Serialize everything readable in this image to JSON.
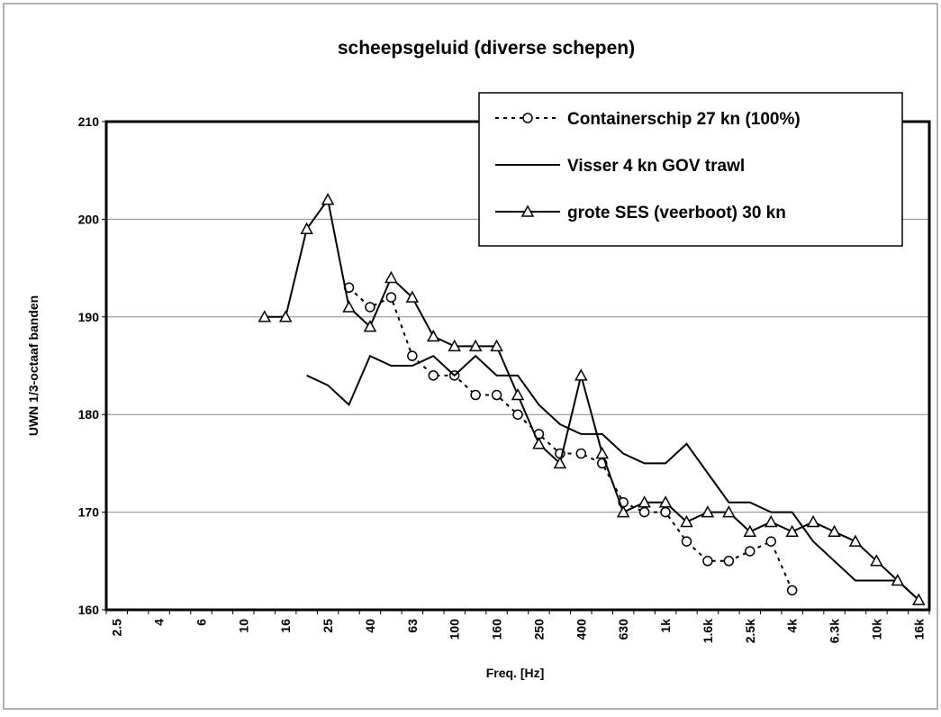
{
  "chart_data": {
    "type": "line",
    "title": "scheepsgeluid (diverse schepen)",
    "y_label": "UWN 1/3-octaaf banden",
    "x_label": "Freq. [Hz]",
    "categories": [
      "2.5",
      null,
      "4",
      null,
      "6",
      null,
      "10",
      null,
      "16",
      null,
      "25",
      null,
      "40",
      null,
      "63",
      null,
      "100",
      null,
      "160",
      null,
      "250",
      null,
      "400",
      null,
      "630",
      null,
      "1k",
      null,
      "1.6k",
      null,
      "2.5k",
      null,
      "4k",
      null,
      "6.3k",
      null,
      "10k",
      null,
      "16k"
    ],
    "ylim": [
      160,
      210
    ],
    "yticks": [
      160,
      170,
      180,
      190,
      200,
      210
    ],
    "grid": true,
    "legend": "top-right",
    "series": [
      {
        "name": "Containerschip 27 kn (100%)",
        "color": "#000000",
        "marker": "circle",
        "dash": "dotted",
        "values": [
          null,
          null,
          null,
          null,
          null,
          null,
          null,
          null,
          null,
          null,
          null,
          193,
          191,
          192,
          186,
          184,
          184,
          182,
          182,
          180,
          178,
          176,
          176,
          175,
          171,
          170,
          170,
          167,
          165,
          165,
          166,
          167,
          162,
          null,
          null,
          null,
          null,
          null,
          null
        ]
      },
      {
        "name": "Visser 4 kn GOV trawl",
        "color": "#000000",
        "values": [
          null,
          null,
          null,
          null,
          null,
          null,
          null,
          null,
          null,
          184,
          183,
          181,
          186,
          185,
          185,
          186,
          184,
          186,
          184,
          184,
          181,
          179,
          178,
          178,
          176,
          175,
          175,
          177,
          174,
          171,
          171,
          170,
          170,
          167,
          165,
          163,
          163,
          163,
          161
        ]
      },
      {
        "name": "grote SES (veerboot) 30 kn",
        "color": "#000000",
        "marker": "triangle",
        "values": [
          null,
          null,
          null,
          null,
          null,
          null,
          null,
          190,
          190,
          199,
          202,
          191,
          189,
          194,
          192,
          188,
          187,
          187,
          187,
          182,
          177,
          175,
          184,
          176,
          170,
          171,
          171,
          169,
          170,
          170,
          168,
          169,
          168,
          169,
          168,
          167,
          165,
          163,
          161
        ]
      }
    ]
  }
}
